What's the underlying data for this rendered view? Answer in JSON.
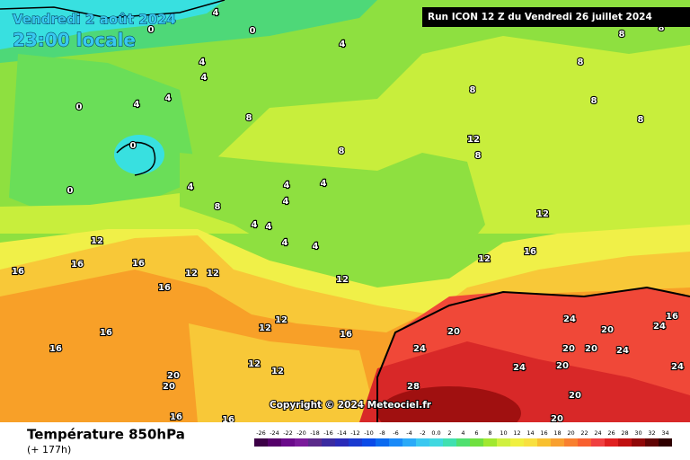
{
  "header": {
    "date": "Vendredi 2 août 2024",
    "time": "23:00 locale",
    "run": "Run ICON 12 Z du Vendredi 26 juillet 2024"
  },
  "copyright": "Copyright © 2024 Meteociel.fr",
  "footer": {
    "title": "Température 850hPa",
    "lead": "(+ 177h)"
  },
  "legend": {
    "labels": [
      "-26",
      "-24",
      "-22",
      "-20",
      "-18",
      "-16",
      "-14",
      "-12",
      "-10",
      "-8",
      "-6",
      "-4",
      "-2",
      "0.0",
      "2",
      "4",
      "6",
      "8",
      "10",
      "12",
      "14",
      "16",
      "18",
      "20",
      "22",
      "24",
      "26",
      "28",
      "30",
      "32",
      "34"
    ],
    "colors": [
      "#3c0046",
      "#55006a",
      "#6a0a8a",
      "#7a1a9a",
      "#5a2a8a",
      "#3a2aa0",
      "#2a2ab8",
      "#1a3ad0",
      "#0a4ae8",
      "#0a6af0",
      "#1a8af8",
      "#2aaaf8",
      "#3ac8f0",
      "#40d8e0",
      "#40e0b0",
      "#50e070",
      "#70e040",
      "#a0e830",
      "#d0f040",
      "#f0f040",
      "#f8e040",
      "#f8c030",
      "#f8a030",
      "#f88030",
      "#f86030",
      "#f04040",
      "#e02020",
      "#c01010",
      "#900808",
      "#600404",
      "#300000"
    ]
  },
  "map": {
    "labels": [
      "4",
      "0",
      "0",
      "4",
      "4",
      "4",
      "4",
      "4",
      "0",
      "0",
      "0",
      "4",
      "4",
      "4",
      "4",
      "8",
      "4",
      "4",
      "4",
      "4",
      "8",
      "8",
      "8",
      "8",
      "8",
      "8",
      "8",
      "12",
      "12",
      "12",
      "16",
      "12",
      "16",
      "16",
      "16",
      "12",
      "12",
      "16",
      "12",
      "12",
      "16",
      "12",
      "16",
      "16",
      "20",
      "20",
      "12",
      "12",
      "16",
      "16",
      "20",
      "24",
      "24",
      "20",
      "24",
      "28",
      "20",
      "20",
      "24",
      "20",
      "24",
      "16",
      "20",
      "24",
      "20",
      "8",
      "8"
    ]
  }
}
